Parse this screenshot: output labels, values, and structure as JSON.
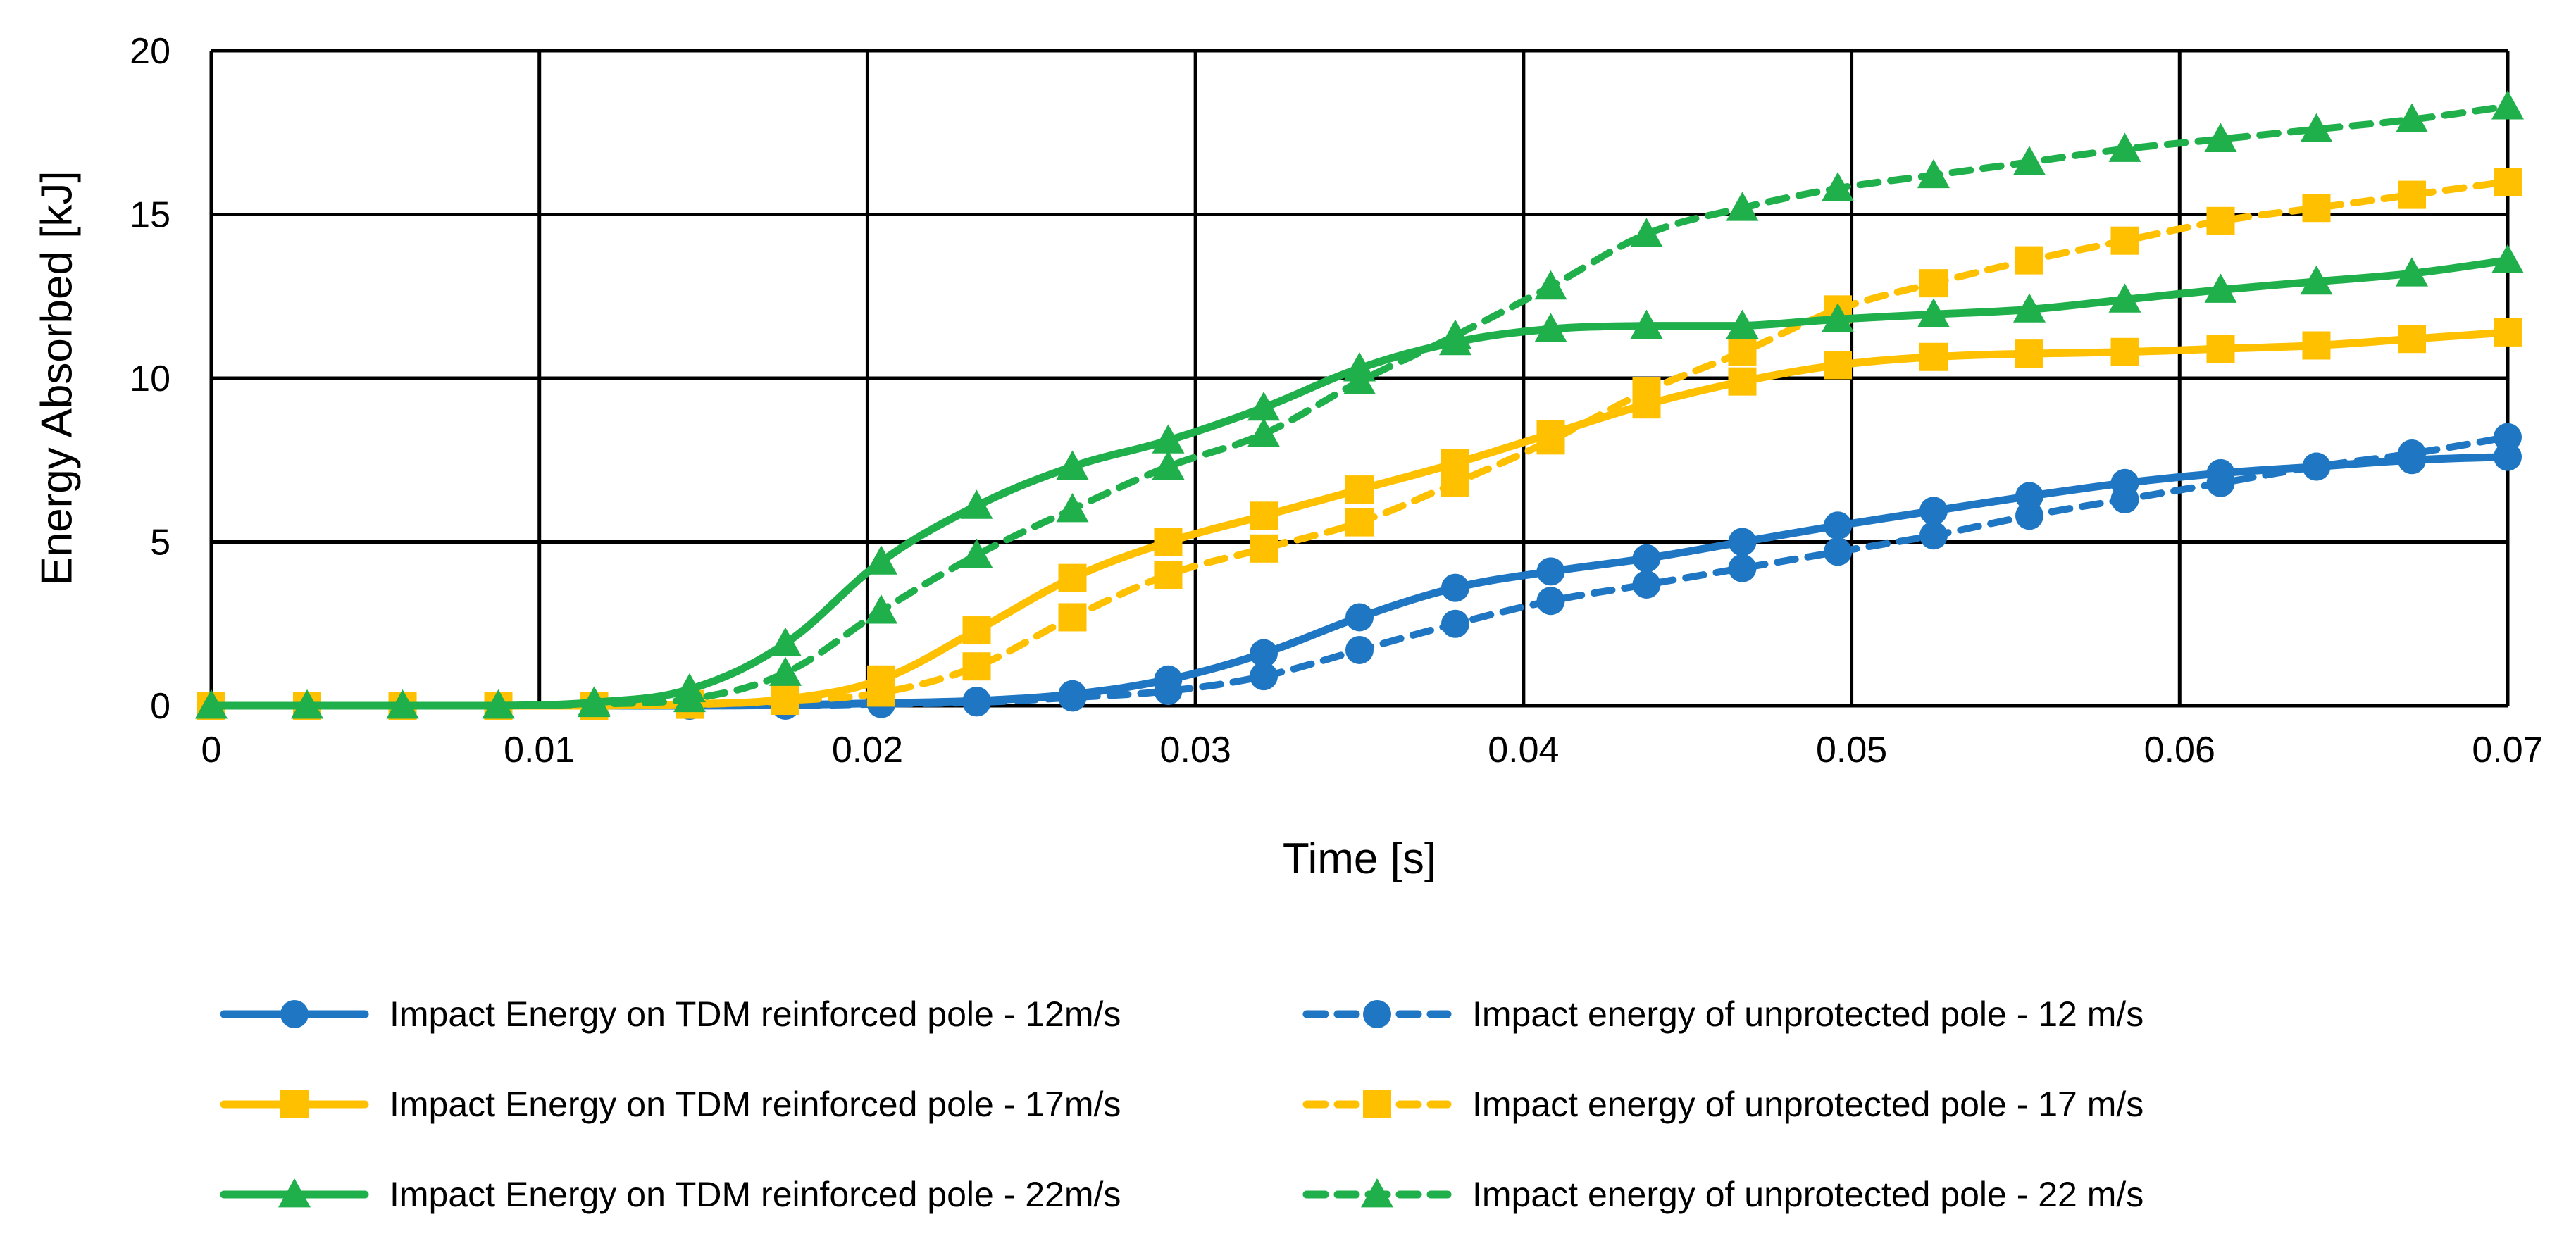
{
  "chart_data": {
    "type": "line",
    "title": "",
    "xlabel": "Time [s]",
    "ylabel": "Energy Absorbed [kJ]",
    "xlim": [
      0,
      0.07
    ],
    "ylim": [
      0,
      20
    ],
    "grid": true,
    "legend_position": "bottom",
    "x_ticks": [
      "0",
      "0.01",
      "0.02",
      "0.03",
      "0.04",
      "0.05",
      "0.06",
      "0.07"
    ],
    "y_ticks": [
      "0",
      "5",
      "10",
      "15",
      "20"
    ],
    "x_tick_values": [
      0,
      0.01,
      0.02,
      0.03,
      0.04,
      0.05,
      0.06,
      0.07
    ],
    "y_tick_values": [
      0,
      5,
      10,
      15,
      20
    ],
    "x": [
      0,
      0.00292,
      0.00583,
      0.00875,
      0.01167,
      0.01458,
      0.0175,
      0.02042,
      0.02333,
      0.02625,
      0.02917,
      0.03208,
      0.035,
      0.03792,
      0.04083,
      0.04375,
      0.04667,
      0.04958,
      0.0525,
      0.05542,
      0.05833,
      0.06125,
      0.06417,
      0.06708,
      0.07
    ],
    "series": [
      {
        "name": "Impact Energy on TDM reinforced pole - 12m/s",
        "color": "#1F77C4",
        "style": "solid",
        "marker": "circle",
        "values": [
          0,
          0,
          0,
          0,
          0,
          0,
          0.02,
          0.08,
          0.15,
          0.35,
          0.8,
          1.6,
          2.7,
          3.6,
          4.1,
          4.5,
          5.0,
          5.5,
          5.95,
          6.4,
          6.8,
          7.1,
          7.3,
          7.5,
          7.6
        ]
      },
      {
        "name": "Impact energy of unprotected pole - 12 m/s",
        "color": "#1F77C4",
        "style": "dashed",
        "marker": "circle",
        "values": [
          0,
          0,
          0,
          0,
          0,
          0,
          0,
          0.05,
          0.1,
          0.25,
          0.45,
          0.9,
          1.7,
          2.5,
          3.2,
          3.7,
          4.2,
          4.7,
          5.2,
          5.8,
          6.3,
          6.8,
          7.3,
          7.7,
          8.2
        ]
      },
      {
        "name": "Impact Energy on TDM reinforced pole - 17m/s",
        "color": "#FFC000",
        "style": "solid",
        "marker": "square",
        "values": [
          0,
          0,
          0,
          0,
          0,
          0.05,
          0.2,
          0.8,
          2.3,
          3.9,
          5.0,
          5.8,
          6.6,
          7.4,
          8.3,
          9.2,
          9.9,
          10.4,
          10.65,
          10.75,
          10.8,
          10.9,
          11.0,
          11.2,
          11.4
        ]
      },
      {
        "name": "Impact energy of unprotected pole - 17 m/s",
        "color": "#FFC000",
        "style": "dashed",
        "marker": "square",
        "values": [
          0,
          0,
          0,
          0,
          0,
          0.03,
          0.15,
          0.4,
          1.2,
          2.7,
          4.0,
          4.8,
          5.6,
          6.8,
          8.1,
          9.6,
          10.8,
          12.1,
          12.9,
          13.6,
          14.2,
          14.8,
          15.2,
          15.6,
          16.0
        ]
      },
      {
        "name": "Impact Energy on TDM reinforced pole - 22m/s",
        "color": "#1FAF4B",
        "style": "solid",
        "marker": "triangle",
        "values": [
          0,
          0,
          0,
          0,
          0.1,
          0.5,
          1.9,
          4.4,
          6.1,
          7.3,
          8.1,
          9.1,
          10.3,
          11.1,
          11.5,
          11.6,
          11.6,
          11.8,
          11.95,
          12.1,
          12.4,
          12.7,
          12.95,
          13.2,
          13.6
        ]
      },
      {
        "name": "Impact energy of unprotected pole - 22 m/s",
        "color": "#1FAF4B",
        "style": "dashed",
        "marker": "triangle",
        "values": [
          0,
          0,
          0,
          0,
          0.05,
          0.2,
          1.0,
          2.9,
          4.6,
          6.0,
          7.3,
          8.3,
          9.9,
          11.3,
          12.8,
          14.4,
          15.2,
          15.8,
          16.2,
          16.6,
          17.0,
          17.3,
          17.6,
          17.9,
          18.3
        ]
      }
    ]
  }
}
